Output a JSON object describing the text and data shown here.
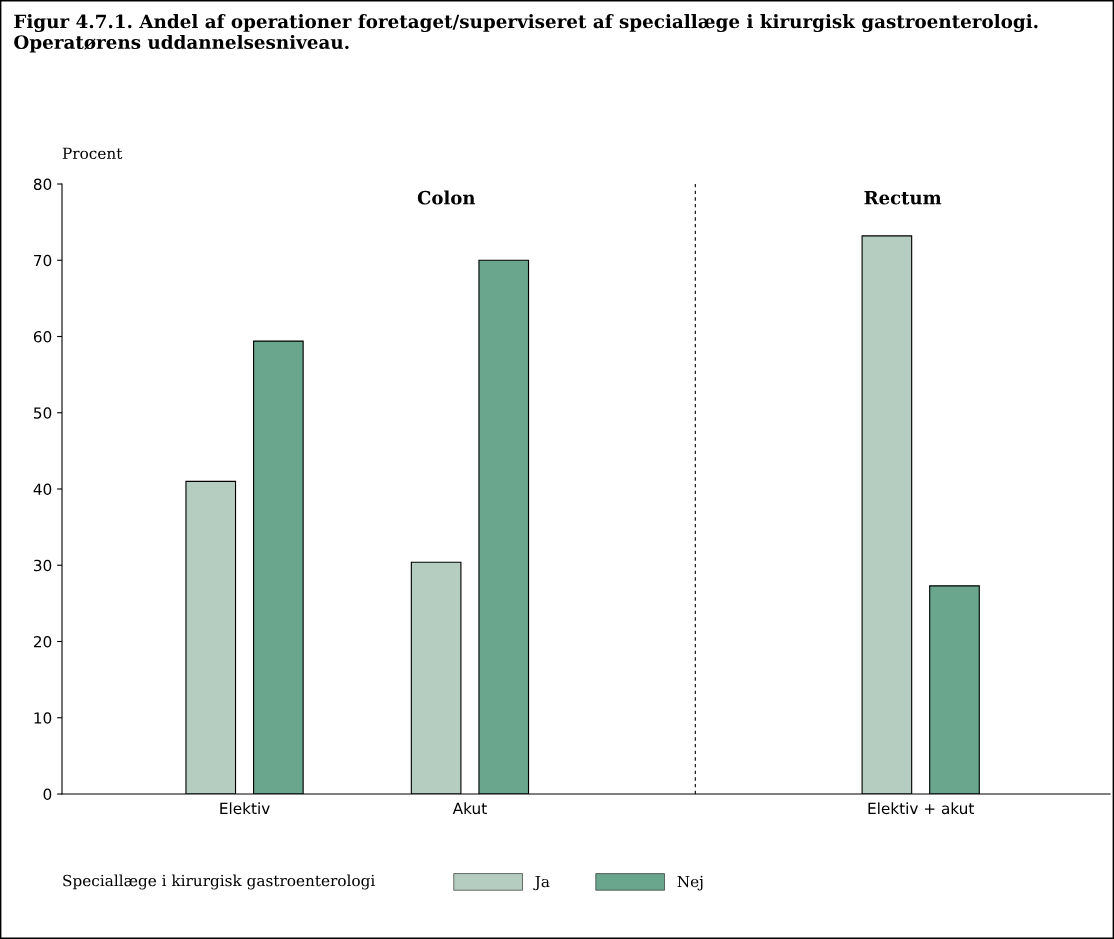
{
  "chart_data": {
    "type": "bar",
    "title": "Figur 4.7.1. Andel af operationer foretaget/superviseret af speciallæge i kirurgisk gastroenterologi. Operatørens uddannelsesniveau.",
    "ylabel": "Procent",
    "categories": [
      "Elektiv",
      "Akut",
      null,
      "Elektiv + akut"
    ],
    "series": [
      {
        "name": "Ja",
        "color": "#b5cdc0",
        "values": [
          41,
          30.4,
          null,
          73.2
        ]
      },
      {
        "name": "Nej",
        "color": "#6aa58e",
        "values": [
          59.4,
          70,
          null,
          27.3
        ]
      }
    ],
    "ylim": [
      0,
      80
    ],
    "yticks": [
      0,
      10,
      20,
      30,
      40,
      50,
      60,
      70,
      80
    ],
    "annotations": [
      "Colon",
      "Rectum"
    ],
    "legend": "bottom",
    "legend_title": "Speciallæge i kirurgisk gastroenterologi"
  }
}
